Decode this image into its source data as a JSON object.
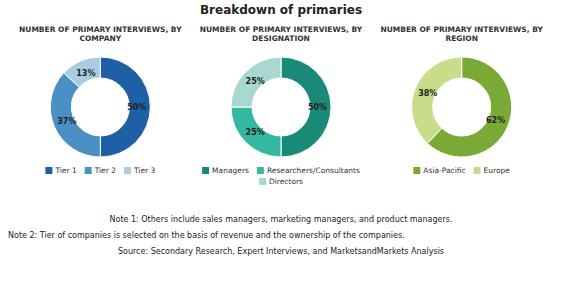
{
  "title": "Breakdown of primaries",
  "annotations": [
    "Note 1: Others include sales managers, marketing managers, and product managers.",
    "Note 2: Tier of companies is selected on the basis of revenue and the ownership of the companies.",
    "Source: Secondary Research, Expert Interviews, and MarketsandMarkets Analysis"
  ],
  "chart_data": [
    {
      "type": "donut",
      "title": "NUMBER OF PRIMARY INTERVIEWS, BY\nCOMPANY",
      "categories": [
        "Tier 1",
        "Tier 2",
        "Tier 3"
      ],
      "values": [
        50,
        37,
        13
      ],
      "value_labels": [
        "50%",
        "37%",
        "13%"
      ],
      "colors": [
        "#1f5fa6",
        "#4a90c4",
        "#a8cde0"
      ],
      "data_labels": true
    },
    {
      "type": "donut",
      "title": "NUMBER OF PRIMARY INTERVIEWS, BY\nDESIGNATION",
      "categories": [
        "Managers",
        "Researchers/Consultants",
        "Directors"
      ],
      "values": [
        50,
        25,
        25
      ],
      "value_labels": [
        "50%",
        "25%",
        "25%"
      ],
      "colors": [
        "#1a8a78",
        "#35b8a0",
        "#a8d8d0"
      ],
      "data_labels": true
    },
    {
      "type": "donut",
      "title": "NUMBER OF PRIMARY INTERVIEWS, BY\nREGION",
      "categories": [
        "Asia-Pacific",
        "Europe"
      ],
      "values": [
        62,
        38
      ],
      "value_labels": [
        "62%",
        "38%"
      ],
      "colors": [
        "#7aaa35",
        "#c8dc8a"
      ],
      "data_labels": true
    }
  ]
}
